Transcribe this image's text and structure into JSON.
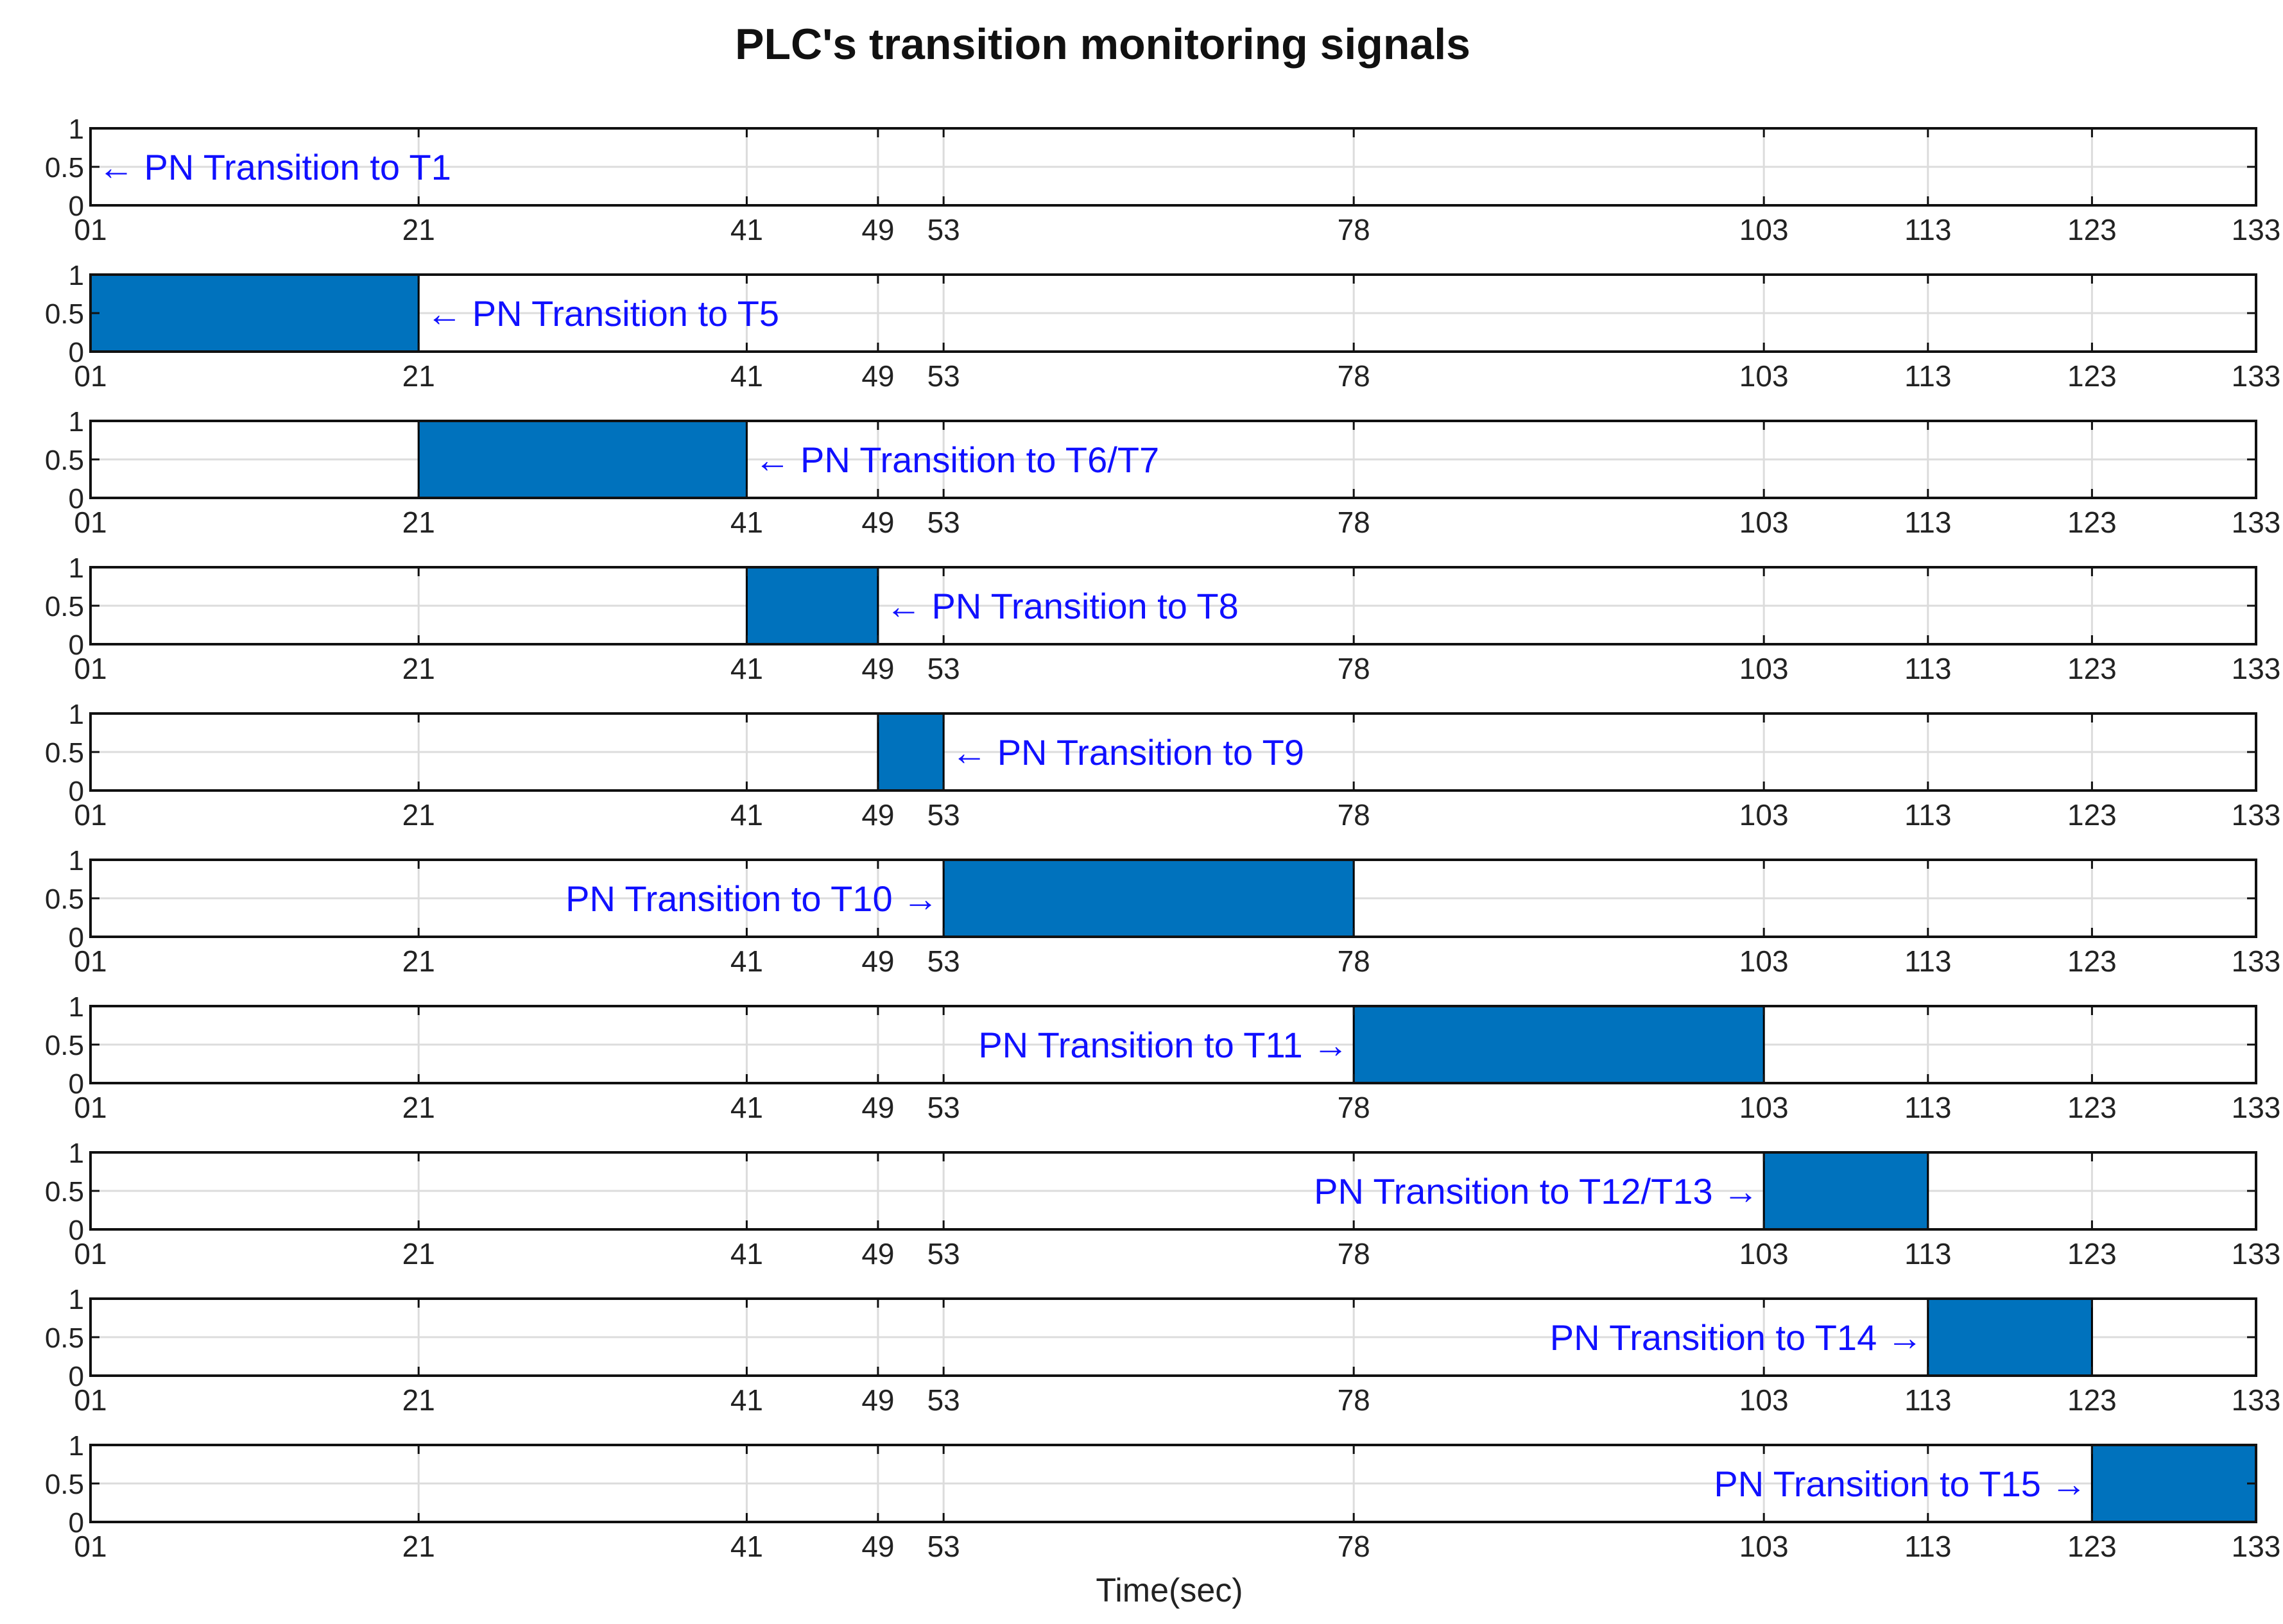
{
  "chart_data": {
    "type": "bar",
    "title": "PLC's transition monitoring signals",
    "xlabel": "Time(sec)",
    "ylabel": "",
    "xlim": [
      1,
      133
    ],
    "ylim": [
      0,
      1
    ],
    "grid": true,
    "x_ticks": [
      1,
      21,
      41,
      49,
      53,
      78,
      103,
      113,
      123,
      133
    ],
    "x_tick_labels": [
      "01",
      "21",
      "41",
      "49",
      "53",
      "78",
      "103",
      "113",
      "123",
      "133"
    ],
    "y_ticks": [
      0,
      0.5,
      1
    ],
    "y_tick_labels": [
      "0",
      "0.5",
      "1"
    ],
    "bar_color": "#0072BD",
    "annotation_color": "#1010FF",
    "series": [
      {
        "name": "PN Transition to T1",
        "label": "← PN Transition to T1",
        "start": 1,
        "end": 1,
        "value": 0,
        "anchor": "start",
        "label_x": 1
      },
      {
        "name": "PN Transition to T5",
        "label": "← PN Transition to T5",
        "start": 1,
        "end": 21,
        "value": 1,
        "anchor": "start",
        "label_x": 21
      },
      {
        "name": "PN Transition to T6/T7",
        "label": "← PN Transition to T6/T7",
        "start": 21,
        "end": 41,
        "value": 1,
        "anchor": "start",
        "label_x": 41
      },
      {
        "name": "PN Transition to T8",
        "label": "← PN Transition to T8",
        "start": 41,
        "end": 49,
        "value": 1,
        "anchor": "start",
        "label_x": 49
      },
      {
        "name": "PN Transition to T9",
        "label": "← PN Transition to T9",
        "start": 49,
        "end": 53,
        "value": 1,
        "anchor": "start",
        "label_x": 53
      },
      {
        "name": "PN Transition to T10",
        "label": "PN Transition to T10 →",
        "start": 53,
        "end": 78,
        "value": 1,
        "anchor": "end",
        "label_x": 53
      },
      {
        "name": "PN Transition to T11",
        "label": "PN Transition to T11 →",
        "start": 78,
        "end": 103,
        "value": 1,
        "anchor": "end",
        "label_x": 78
      },
      {
        "name": "PN Transition to T12/T13",
        "label": "PN Transition to T12/T13 →",
        "start": 103,
        "end": 113,
        "value": 1,
        "anchor": "end",
        "label_x": 103
      },
      {
        "name": "PN Transition to T14",
        "label": "PN Transition to T14 →",
        "start": 113,
        "end": 123,
        "value": 1,
        "anchor": "end",
        "label_x": 113
      },
      {
        "name": "PN Transition to T15",
        "label": "PN Transition to T15 →",
        "start": 123,
        "end": 133,
        "value": 1,
        "anchor": "end",
        "label_x": 123
      }
    ]
  }
}
